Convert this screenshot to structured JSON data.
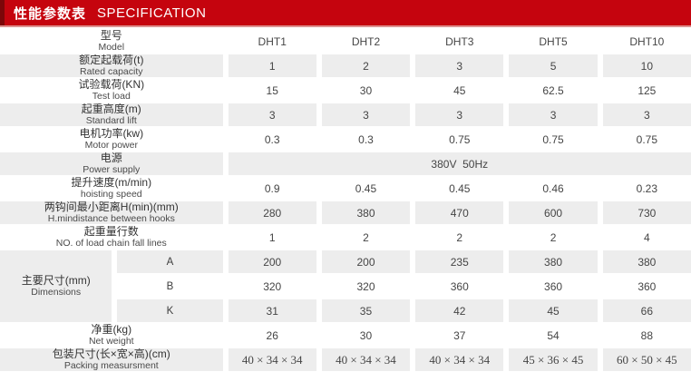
{
  "header": {
    "title_zh": "性能参数表",
    "title_en": "SPECIFICATION"
  },
  "colors": {
    "header_red": "#c5040e",
    "header_accent_dark_red": "#7d0709",
    "divider_pink": "#dd9391",
    "shaded_cell_gray": "#ededed"
  },
  "table": {
    "rows": [
      {
        "label_zh": "型号",
        "label_en": "Model",
        "values": [
          "DHT1",
          "DHT2",
          "DHT3",
          "DHT5",
          "DHT10"
        ]
      },
      {
        "label_zh": "额定起载荷(t)",
        "label_en": "Rated capacity",
        "values": [
          "1",
          "2",
          "3",
          "5",
          "10"
        ]
      },
      {
        "label_zh": "试验载荷(KN)",
        "label_en": "Test load",
        "values": [
          "15",
          "30",
          "45",
          "62.5",
          "125"
        ]
      },
      {
        "label_zh": "起重高度(m)",
        "label_en": "Standard lift",
        "values": [
          "3",
          "3",
          "3",
          "3",
          "3"
        ]
      },
      {
        "label_zh": "电机功率(kw)",
        "label_en": "Motor power",
        "values": [
          "0.3",
          "0.3",
          "0.75",
          "0.75",
          "0.75"
        ]
      },
      {
        "label_zh": "电源",
        "label_en": "Power supply",
        "span_value": "380V  50Hz"
      },
      {
        "label_zh": "提升速度(m/min)",
        "label_en": "hoisting speed",
        "values": [
          "0.9",
          "0.45",
          "0.45",
          "0.46",
          "0.23"
        ]
      },
      {
        "label_zh": "两钩间最小距离H(min)(mm)",
        "label_en": "H.mindistance between hooks",
        "values": [
          "280",
          "380",
          "470",
          "600",
          "730"
        ]
      },
      {
        "label_zh": "起重量行数",
        "label_en": "NO. of load chain fall lines",
        "values": [
          "1",
          "2",
          "2",
          "2",
          "4"
        ]
      },
      {
        "group_label_zh": "主要尺寸(mm)",
        "group_label_en": "Dimensions",
        "sub_label": "A",
        "values": [
          "200",
          "200",
          "235",
          "380",
          "380"
        ]
      },
      {
        "sub_label": "B",
        "values": [
          "320",
          "320",
          "360",
          "360",
          "360"
        ]
      },
      {
        "sub_label": "K",
        "values": [
          "31",
          "35",
          "42",
          "45",
          "66"
        ]
      },
      {
        "label_zh": "净重(kg)",
        "label_en": "Net weight",
        "values": [
          "26",
          "30",
          "37",
          "54",
          "88"
        ]
      },
      {
        "label_zh": "包装尺寸(长×宽×高)(cm)",
        "label_en": "Packing measursment",
        "values": [
          "40 × 34 × 34",
          "40 × 34 × 34",
          "40 × 34 × 34",
          "45 × 36 × 45",
          "60 × 50 × 45"
        ]
      }
    ]
  }
}
